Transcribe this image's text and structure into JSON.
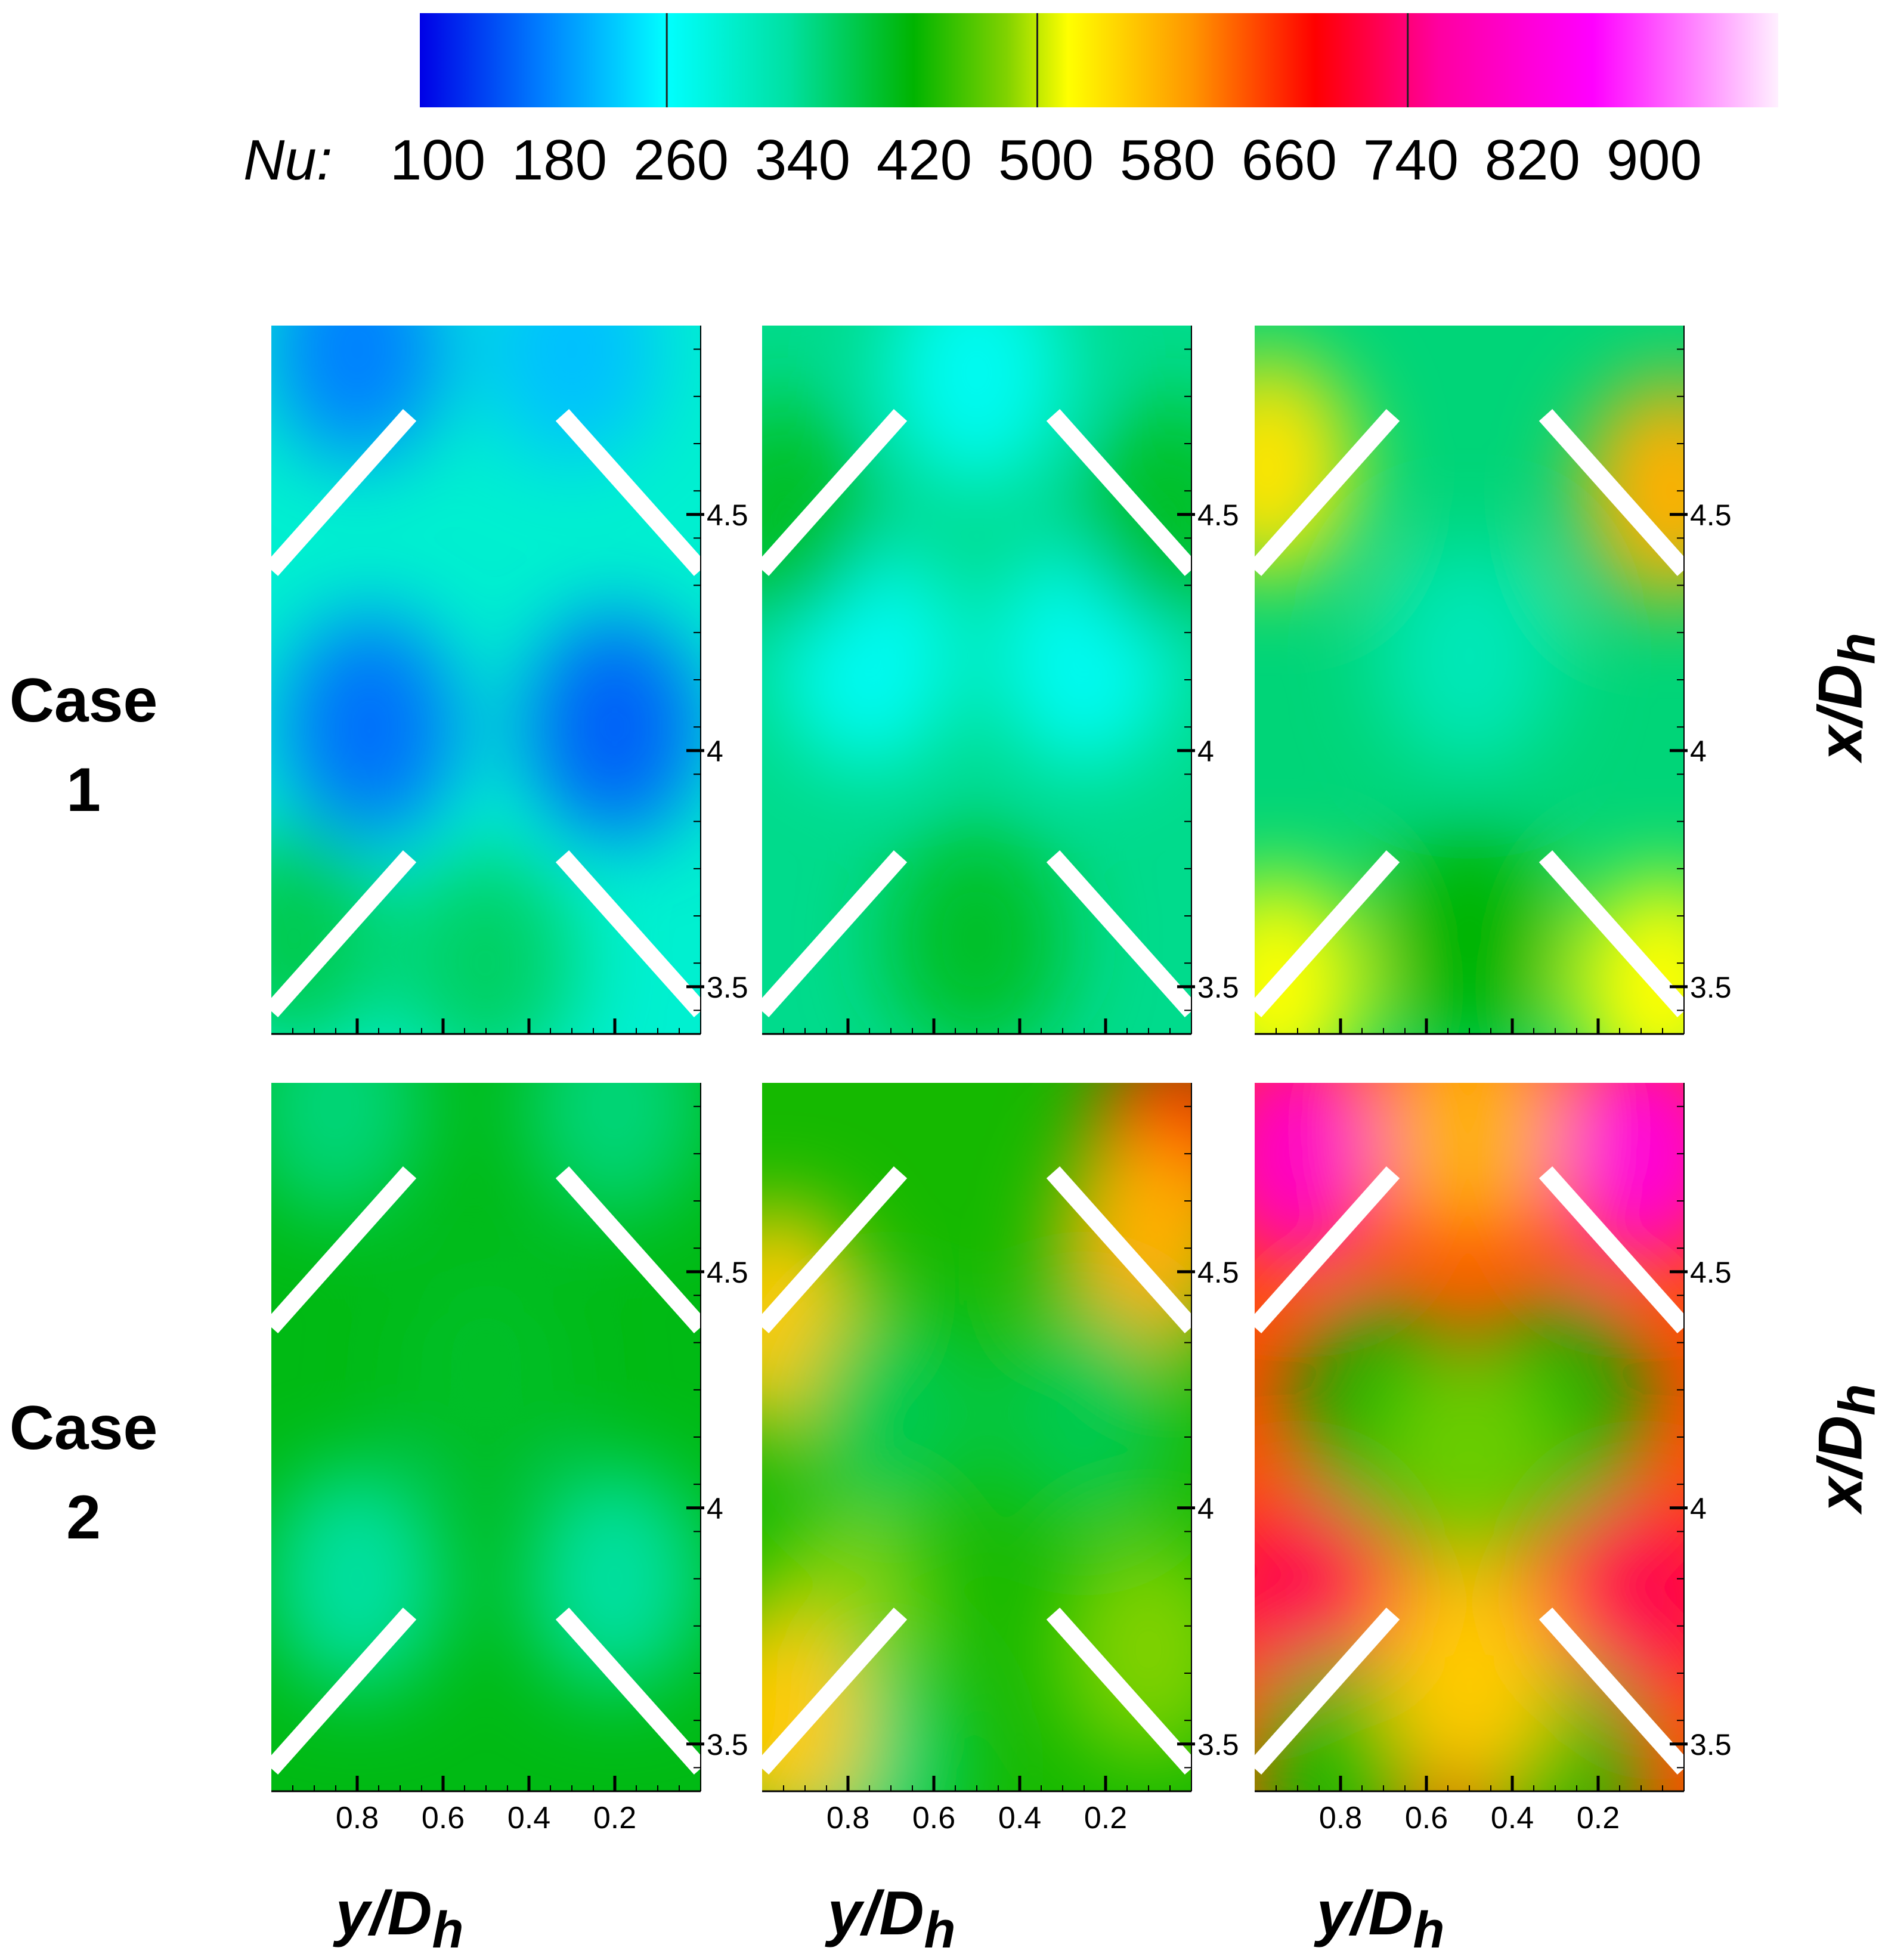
{
  "colorbar": {
    "variable_label": "Nu:",
    "ticks": [
      "100",
      "180",
      "260",
      "340",
      "420",
      "500",
      "580",
      "660",
      "740",
      "820",
      "900"
    ],
    "range": [
      100,
      980
    ],
    "stops": [
      {
        "v": 100,
        "c": "#0000e6"
      },
      {
        "v": 180,
        "c": "#0080ff"
      },
      {
        "v": 260,
        "c": "#00ffff"
      },
      {
        "v": 340,
        "c": "#00e0a0"
      },
      {
        "v": 420,
        "c": "#00b400"
      },
      {
        "v": 480,
        "c": "#80d200"
      },
      {
        "v": 520,
        "c": "#ffff00"
      },
      {
        "v": 600,
        "c": "#ff9600"
      },
      {
        "v": 680,
        "c": "#ff0000"
      },
      {
        "v": 760,
        "c": "#ff00a0"
      },
      {
        "v": 860,
        "c": "#ff00ff"
      },
      {
        "v": 980,
        "c": "#fff0ff"
      }
    ]
  },
  "rows": [
    {
      "label_line1": "Case",
      "label_line2": "1",
      "right_axis_label": "x/D",
      "right_axis_sub": "h"
    },
    {
      "label_line1": "Case",
      "label_line2": "2",
      "right_axis_label": "x/D",
      "right_axis_sub": "h"
    }
  ],
  "columns": [
    {
      "bottom_axis_label": "y/D",
      "bottom_axis_sub": "h"
    },
    {
      "bottom_axis_label": "y/D",
      "bottom_axis_sub": "h"
    },
    {
      "bottom_axis_label": "y/D",
      "bottom_axis_sub": "h"
    }
  ],
  "chart_data": {
    "type": "heatmap",
    "colorbar_title": "Nu:",
    "x_ticks": [
      "0.8",
      "0.6",
      "0.4",
      "0.2"
    ],
    "x_tick_values": [
      0.8,
      0.6,
      0.4,
      0.2
    ],
    "y_ticks": [
      "3.5",
      "4",
      "4.5"
    ],
    "y_tick_values": [
      3.5,
      4,
      4.5
    ],
    "xlim": [
      1.0,
      0.0
    ],
    "ylim": [
      3.4,
      4.9
    ],
    "panels": [
      {
        "row": 0,
        "col": 0,
        "background_nu": 300,
        "blobs": [
          {
            "y": 0.8,
            "x": 4.85,
            "nu": 180
          },
          {
            "y": 0.3,
            "x": 4.85,
            "nu": 220
          },
          {
            "y": 0.77,
            "x": 4.05,
            "nu": 170
          },
          {
            "y": 0.2,
            "x": 4.05,
            "nu": 160
          },
          {
            "y": 0.5,
            "x": 3.55,
            "nu": 370
          },
          {
            "y": 0.95,
            "x": 3.6,
            "nu": 380
          }
        ]
      },
      {
        "row": 0,
        "col": 1,
        "background_nu": 350,
        "blobs": [
          {
            "y": 0.5,
            "x": 4.8,
            "nu": 270
          },
          {
            "y": 0.75,
            "x": 4.2,
            "nu": 270
          },
          {
            "y": 0.25,
            "x": 4.2,
            "nu": 270
          },
          {
            "y": 0.5,
            "x": 3.6,
            "nu": 400
          },
          {
            "y": 0.95,
            "x": 4.5,
            "nu": 400
          },
          {
            "y": 0.05,
            "x": 4.5,
            "nu": 400
          }
        ]
      },
      {
        "row": 0,
        "col": 2,
        "background_nu": 360,
        "blobs": [
          {
            "y": 0.5,
            "x": 4.2,
            "nu": 320
          },
          {
            "y": 0.97,
            "x": 4.6,
            "nu": 540
          },
          {
            "y": 0.03,
            "x": 4.55,
            "nu": 580
          },
          {
            "y": 0.95,
            "x": 3.5,
            "nu": 520
          },
          {
            "y": 0.05,
            "x": 3.5,
            "nu": 520
          },
          {
            "y": 0.5,
            "x": 3.6,
            "nu": 420
          }
        ]
      },
      {
        "row": 1,
        "col": 0,
        "background_nu": 410,
        "blobs": [
          {
            "y": 0.85,
            "x": 4.85,
            "nu": 360
          },
          {
            "y": 0.2,
            "x": 4.85,
            "nu": 360
          },
          {
            "y": 0.8,
            "x": 3.85,
            "nu": 340
          },
          {
            "y": 0.2,
            "x": 3.85,
            "nu": 340
          },
          {
            "y": 0.5,
            "x": 4.3,
            "nu": 400
          }
        ]
      },
      {
        "row": 1,
        "col": 1,
        "background_nu": 430,
        "blobs": [
          {
            "y": 0.03,
            "x": 4.75,
            "nu": 680
          },
          {
            "y": 0.1,
            "x": 4.55,
            "nu": 580
          },
          {
            "y": 0.97,
            "x": 4.4,
            "nu": 560
          },
          {
            "y": 0.7,
            "x": 4.2,
            "nu": 380
          },
          {
            "y": 0.25,
            "x": 4.2,
            "nu": 380
          },
          {
            "y": 0.8,
            "x": 3.75,
            "nu": 480
          },
          {
            "y": 0.1,
            "x": 3.7,
            "nu": 480
          },
          {
            "y": 0.75,
            "x": 3.45,
            "nu": 360
          },
          {
            "y": 0.97,
            "x": 3.55,
            "nu": 560
          }
        ]
      },
      {
        "row": 1,
        "col": 2,
        "background_nu": 640,
        "blobs": [
          {
            "y": 0.9,
            "x": 4.75,
            "nu": 800
          },
          {
            "y": 0.1,
            "x": 4.75,
            "nu": 820
          },
          {
            "y": 0.5,
            "x": 4.8,
            "nu": 580
          },
          {
            "y": 0.7,
            "x": 4.2,
            "nu": 420
          },
          {
            "y": 0.3,
            "x": 4.2,
            "nu": 420
          },
          {
            "y": 0.5,
            "x": 4.1,
            "nu": 470
          },
          {
            "y": 0.9,
            "x": 3.8,
            "nu": 720
          },
          {
            "y": 0.1,
            "x": 3.8,
            "nu": 720
          },
          {
            "y": 0.8,
            "x": 3.45,
            "nu": 430
          },
          {
            "y": 0.3,
            "x": 3.45,
            "nu": 430
          },
          {
            "y": 0.5,
            "x": 3.65,
            "nu": 560
          }
        ]
      }
    ]
  }
}
